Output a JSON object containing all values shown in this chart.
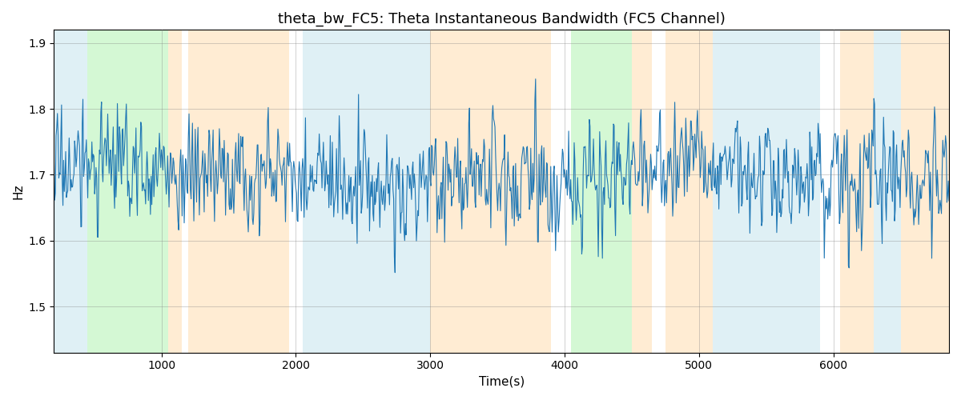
{
  "title": "theta_bw_FC5: Theta Instantaneous Bandwidth (FC5 Channel)",
  "xlabel": "Time(s)",
  "ylabel": "Hz",
  "xlim": [
    200,
    6860
  ],
  "ylim": [
    1.43,
    1.92
  ],
  "yticks": [
    1.5,
    1.6,
    1.7,
    1.8,
    1.9
  ],
  "xticks": [
    1000,
    2000,
    3000,
    4000,
    5000,
    6000
  ],
  "line_color": "#1f77b4",
  "line_width": 0.8,
  "bg_bands": [
    {
      "xmin": 200,
      "xmax": 450,
      "color": "#add8e6",
      "alpha": 0.38
    },
    {
      "xmin": 450,
      "xmax": 1050,
      "color": "#90ee90",
      "alpha": 0.38
    },
    {
      "xmin": 1050,
      "xmax": 1150,
      "color": "#ffd59e",
      "alpha": 0.45
    },
    {
      "xmin": 1150,
      "xmax": 1200,
      "color": "#ffffff",
      "alpha": 0.85
    },
    {
      "xmin": 1200,
      "xmax": 1950,
      "color": "#ffd59e",
      "alpha": 0.45
    },
    {
      "xmin": 1950,
      "xmax": 2050,
      "color": "#ffffff",
      "alpha": 0.85
    },
    {
      "xmin": 2050,
      "xmax": 3000,
      "color": "#add8e6",
      "alpha": 0.38
    },
    {
      "xmin": 3000,
      "xmax": 3900,
      "color": "#ffd59e",
      "alpha": 0.45
    },
    {
      "xmin": 3900,
      "xmax": 4050,
      "color": "#ffffff",
      "alpha": 0.85
    },
    {
      "xmin": 4050,
      "xmax": 4100,
      "color": "#90ee90",
      "alpha": 0.38
    },
    {
      "xmin": 4100,
      "xmax": 4500,
      "color": "#90ee90",
      "alpha": 0.38
    },
    {
      "xmin": 4500,
      "xmax": 4650,
      "color": "#ffd59e",
      "alpha": 0.45
    },
    {
      "xmin": 4650,
      "xmax": 4750,
      "color": "#ffffff",
      "alpha": 0.85
    },
    {
      "xmin": 4750,
      "xmax": 5100,
      "color": "#ffd59e",
      "alpha": 0.45
    },
    {
      "xmin": 5100,
      "xmax": 5900,
      "color": "#add8e6",
      "alpha": 0.38
    },
    {
      "xmin": 5900,
      "xmax": 6050,
      "color": "#ffffff",
      "alpha": 0.85
    },
    {
      "xmin": 6050,
      "xmax": 6300,
      "color": "#ffd59e",
      "alpha": 0.45
    },
    {
      "xmin": 6300,
      "xmax": 6500,
      "color": "#add8e6",
      "alpha": 0.38
    },
    {
      "xmin": 6500,
      "xmax": 6860,
      "color": "#ffd59e",
      "alpha": 0.45
    }
  ],
  "seed": 17,
  "n_points": 1300,
  "time_start": 200,
  "time_end": 6860,
  "mean_val": 1.695,
  "std_val": 0.058
}
